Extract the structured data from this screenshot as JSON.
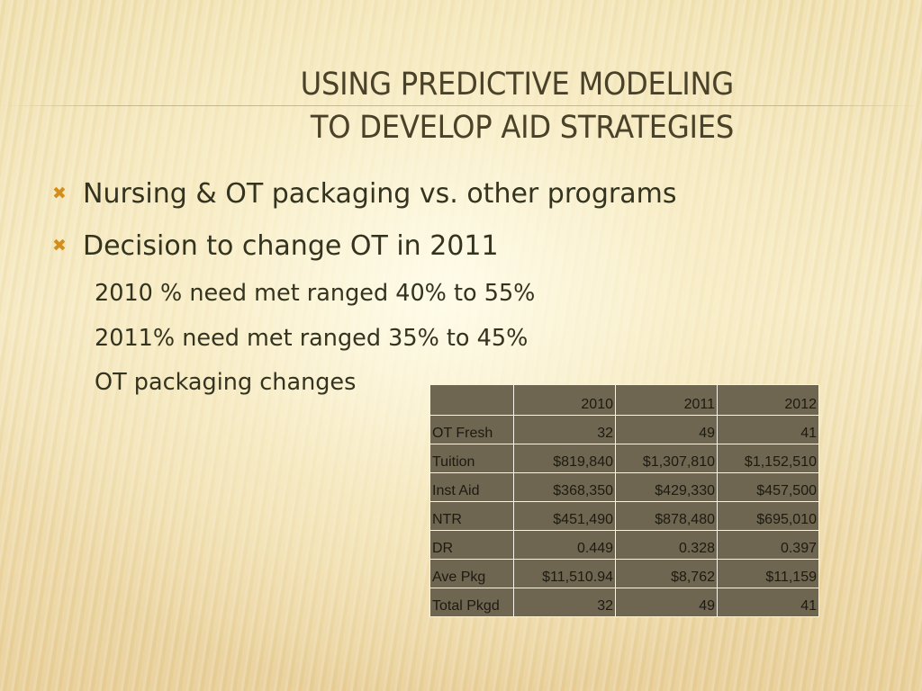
{
  "slide": {
    "title_lines": [
      "USING PREDICTIVE MODELING",
      "TO DEVELOP AID STRATEGIES"
    ],
    "bullet_icon": "x-bullet-icon",
    "bullets": [
      "Nursing & OT packaging vs. other programs",
      "Decision to change OT in 2011"
    ],
    "sub_items": [
      "2010 % need met ranged 40% to 55%",
      "2011% need met ranged 35% to 45%",
      "OT packaging changes"
    ],
    "colors": {
      "title": "#4a4129",
      "bullet_marker": "#d38d1a",
      "body_text": "#33331f",
      "table_fill": "#6e6650",
      "table_border": "#f5f3ec"
    }
  },
  "table": {
    "columns": [
      "",
      "2010",
      "2011",
      "2012"
    ],
    "rows": [
      {
        "label": "OT Fresh",
        "values": [
          "32",
          "49",
          "41"
        ]
      },
      {
        "label": "Tuition",
        "values": [
          "$819,840",
          "$1,307,810",
          "$1,152,510"
        ]
      },
      {
        "label": "Inst Aid",
        "values": [
          "$368,350",
          "$429,330",
          "$457,500"
        ]
      },
      {
        "label": "NTR",
        "values": [
          "$451,490",
          "$878,480",
          "$695,010"
        ]
      },
      {
        "label": "DR",
        "values": [
          "0.449",
          "0.328",
          "0.397"
        ]
      },
      {
        "label": "Ave Pkg",
        "values": [
          "$11,510.94",
          "$8,762",
          "$11,159"
        ]
      },
      {
        "label": "Total Pkgd",
        "values": [
          "32",
          "49",
          "41"
        ]
      }
    ]
  }
}
